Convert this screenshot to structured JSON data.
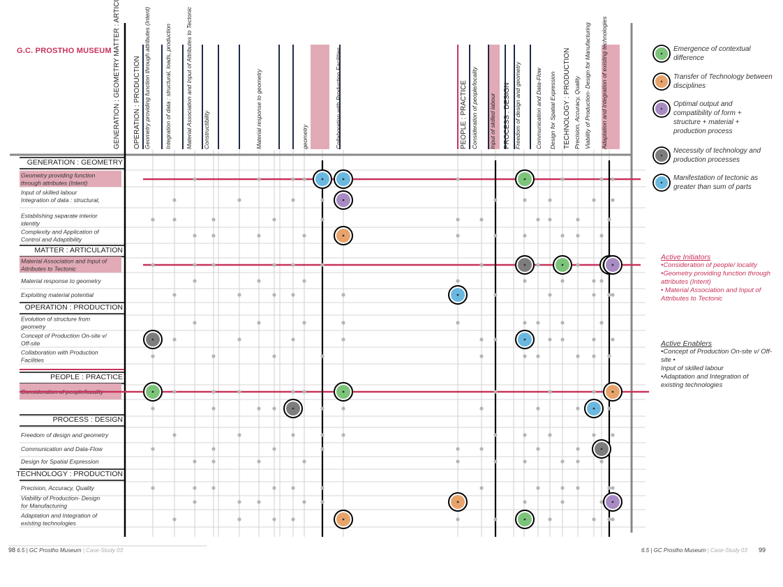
{
  "title": "G.C. PROSTHO MUSEUM",
  "columns": [
    "GENERATION : GEOMETRY MATTER : ARTICULATION",
    "OPERATION : PRODUCTION",
    "Geometry providing function through attributes (Intent)",
    "Integration of data : structural, loads, production",
    "Material Association and Input of Attributes to Tectonic",
    "Constructibility",
    "",
    "",
    "Material response to geometry",
    "",
    "",
    "geometry",
    "",
    "Collaboration with Production Facilities",
    "PEOPLE : PRACTICE",
    "Consideration of people/locality",
    "Input of skilled labour",
    "PROCESS : DESIGN",
    "Freedom of design and geometry",
    "Communication and Data-Flow",
    "Design for Spatial Expression",
    "TECHNOLOGY : PRODUCTION",
    "Precision, Accuracy, Quality",
    "Viability of Production- Design for Manufacturing",
    "Adaptation and Integration of existing technologies"
  ],
  "rows": [
    {
      "type": "header",
      "label": "GENERATION : GEOMETRY"
    },
    {
      "type": "row",
      "label": "Geometry providing function through attributes (Intent)",
      "highlight": true
    },
    {
      "type": "row",
      "label": "Input of skilled labour Integration of data : structural, loads, production"
    },
    {
      "type": "row",
      "label": "Establishing separate interior identity"
    },
    {
      "type": "row",
      "label": "Complexity and Application of Control and Adaptibility"
    },
    {
      "type": "header",
      "label": "MATTER : ARTICULATION"
    },
    {
      "type": "row",
      "label": "Material Association and Input of Attributes to Tectonic",
      "highlight": true
    },
    {
      "type": "row",
      "label": "Material response to geometry"
    },
    {
      "type": "row",
      "label": "Exploiting material potential"
    },
    {
      "type": "header",
      "label": "OPERATION : PRODUCTION"
    },
    {
      "type": "row",
      "label": "Evolution of structure from geometry"
    },
    {
      "type": "row",
      "label": "Concept of Production On-site v/ Off-site"
    },
    {
      "type": "row",
      "label": "Collaboration with Production Facilities"
    },
    {
      "type": "header",
      "label": "PEOPLE : PRACTICE"
    },
    {
      "type": "row",
      "label": "Consideration of people/locality",
      "highlight": true
    },
    {
      "type": "row",
      "label": ""
    },
    {
      "type": "header",
      "label": "PROCESS : DESIGN"
    },
    {
      "type": "row",
      "label": "Freedom of design and geometry"
    },
    {
      "type": "row",
      "label": "Communication and Data-Flow"
    },
    {
      "type": "row",
      "label": "Design for Spatial Expression"
    },
    {
      "type": "header",
      "label": "TECHNOLOGY : PRODUCTION"
    },
    {
      "type": "row",
      "label": "Precision, Accuracy, Quality"
    },
    {
      "type": "row",
      "label": "Viability of Production- Design for Manufacturing"
    },
    {
      "type": "row",
      "label": "Adaptation and Integration of existing technologies"
    }
  ],
  "legend": [
    {
      "key": "green",
      "label": "Emergence of contextual difference",
      "color": "#7cc47a"
    },
    {
      "key": "orange",
      "label": "Transfer of Technology between disciplines",
      "color": "#e8a36a"
    },
    {
      "key": "purple",
      "label": "Optimal output and compatibility of form + structure + material + production process",
      "color": "#a98bc4"
    },
    {
      "key": "gray",
      "label": "Necessity of technology and production processes",
      "color": "#7d7d7d"
    },
    {
      "key": "blue",
      "label": "Manifestation of tectonic as greater than sum of parts",
      "color": "#6ab8e0"
    }
  ],
  "active_initiators": {
    "title": "Active Initiators",
    "items": [
      "•Consideration of people/ locality",
      "•Geometry providing function through attributes (Intent)",
      "• Material Association and Input of Attributes to Tectonic"
    ]
  },
  "active_enablers": {
    "title": "Active Enablers",
    "items": [
      "•Concept of Production On-site v/ Off-site •",
      "Input of skilled labour",
      "•Adaptation and Integration of existing technologies"
    ]
  },
  "markers": [
    {
      "row": 1,
      "col": 9,
      "color": "blue"
    },
    {
      "row": 1,
      "col": 10,
      "color": "blue"
    },
    {
      "row": 1,
      "col": 14,
      "color": "green"
    },
    {
      "row": 2,
      "col": 10,
      "color": "purple"
    },
    {
      "row": 4,
      "col": 10,
      "color": "orange"
    },
    {
      "row": 6,
      "col": 14,
      "color": "gray"
    },
    {
      "row": 6,
      "col": 17,
      "color": "green"
    },
    {
      "row": 6,
      "col": 21,
      "color": "green"
    },
    {
      "row": 6,
      "col": 22,
      "color": "purple"
    },
    {
      "row": 8,
      "col": 11,
      "color": "blue"
    },
    {
      "row": 11,
      "col": 0,
      "color": "gray"
    },
    {
      "row": 11,
      "col": 14,
      "color": "blue"
    },
    {
      "row": 14,
      "col": 0,
      "color": "green"
    },
    {
      "row": 14,
      "col": 10,
      "color": "green"
    },
    {
      "row": 14,
      "col": 22,
      "color": "orange"
    },
    {
      "row": 15,
      "col": 7,
      "color": "gray"
    },
    {
      "row": 15,
      "col": 19,
      "color": "blue"
    },
    {
      "row": 18,
      "col": 20,
      "color": "gray"
    },
    {
      "row": 22,
      "col": 11,
      "color": "orange"
    },
    {
      "row": 22,
      "col": 22,
      "color": "purple"
    },
    {
      "row": 23,
      "col": 10,
      "color": "orange"
    },
    {
      "row": 23,
      "col": 14,
      "color": "green"
    }
  ],
  "footer": {
    "left_page": "98",
    "left_text": "6.5 | GC Prostho Museum",
    "left_case": "Case-Study 03",
    "right_text": "6.5 | GC Prostho Museum",
    "right_case": "Case-Study 03",
    "right_page": "99"
  },
  "colors": {
    "accent": "#c8325a",
    "highlight_fill": "#e2aab6",
    "grid": "#cfcfcf",
    "frame": "#888888"
  }
}
